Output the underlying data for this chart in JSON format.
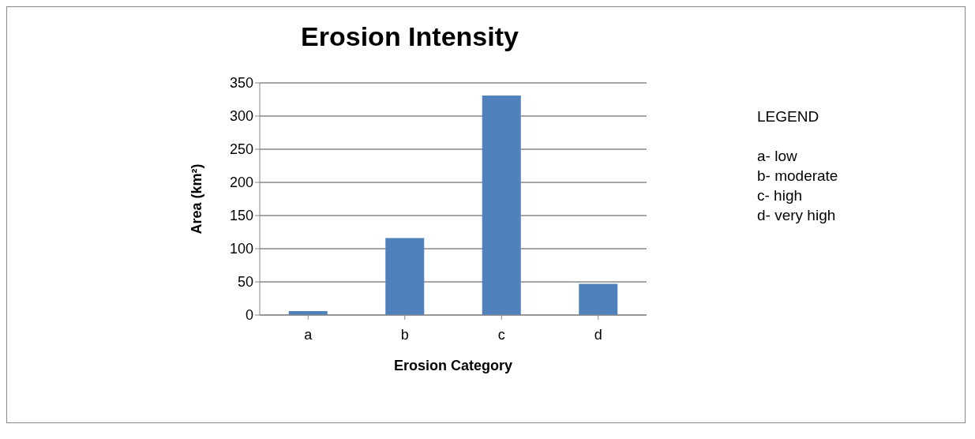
{
  "chart_data": {
    "type": "bar",
    "title": "Erosion Intensity",
    "xlabel": "Erosion Category",
    "ylabel": "Area (km²)",
    "categories": [
      "a",
      "b",
      "c",
      "d"
    ],
    "values": [
      6,
      116,
      331,
      47
    ],
    "color": "#4f81bd",
    "ylim": [
      0,
      350
    ],
    "yticks": [
      0,
      50,
      100,
      150,
      200,
      250,
      300,
      350
    ],
    "grid": "y",
    "annotations": [
      "LEGEND",
      "a- low",
      "b- moderate",
      "c- high",
      "d- very high"
    ]
  }
}
